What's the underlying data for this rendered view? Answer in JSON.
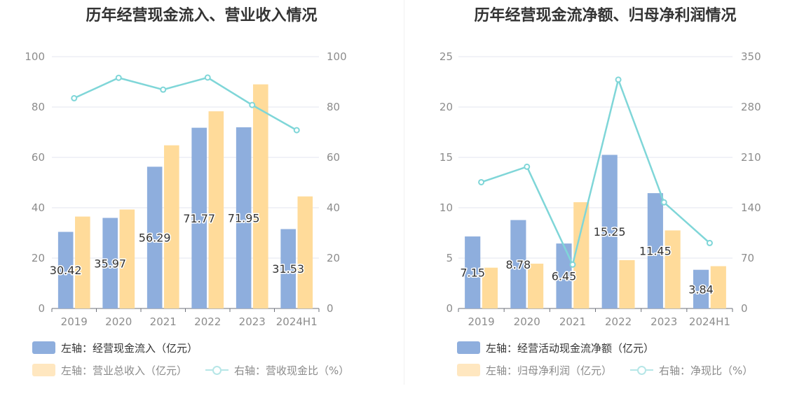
{
  "charts": [
    {
      "title": "历年经营现金流入、营业收入情况",
      "legend": [
        {
          "label": "左轴：经营现金流入（亿元）",
          "color": "#8eaedd",
          "kind": "bar"
        },
        {
          "label": "左轴：营业总收入（亿元）",
          "color": "#ffdb9a",
          "kind": "bar",
          "muted": true
        },
        {
          "label": "右轴：营收现金比（%）",
          "color": "#7fd6d8",
          "kind": "line",
          "muted": true
        }
      ]
    },
    {
      "title": "历年经营现金流净额、归母净利润情况",
      "legend": [
        {
          "label": "左轴：经营活动现金流净额（亿元）",
          "color": "#8eaedd",
          "kind": "bar"
        },
        {
          "label": "左轴：归母净利润（亿元）",
          "color": "#ffdb9a",
          "kind": "bar",
          "muted": true
        },
        {
          "label": "右轴：净现比（%）",
          "color": "#7fd6d8",
          "kind": "line",
          "muted": true
        }
      ]
    }
  ],
  "chart_data": [
    {
      "type": "bar",
      "title": "历年经营现金流入、营业收入情况",
      "categories": [
        "2019",
        "2020",
        "2021",
        "2022",
        "2023",
        "2024H1"
      ],
      "y_left": {
        "min": 0,
        "max": 100,
        "ticks": [
          "0",
          "20",
          "40",
          "60",
          "80",
          "100"
        ]
      },
      "y_right": {
        "min": 0,
        "max": 100,
        "ticks": [
          "0",
          "20",
          "40",
          "60",
          "80",
          "100"
        ]
      },
      "grid": true,
      "legend_position": "bottom-left",
      "series": [
        {
          "name": "左轴：经营现金流入（亿元）",
          "type": "bar",
          "axis": "left",
          "color": "#8eaedd",
          "values": [
            30.42,
            35.97,
            56.29,
            71.77,
            71.95,
            31.53
          ],
          "labels": [
            "30.42",
            "35.97",
            "56.29",
            "71.77",
            "71.95",
            "31.53"
          ]
        },
        {
          "name": "左轴：营业总收入（亿元）",
          "type": "bar",
          "axis": "left",
          "color": "#ffdb9a",
          "values": [
            36.5,
            39.3,
            64.8,
            78.3,
            89.0,
            44.5
          ]
        },
        {
          "name": "右轴：营收现金比（%）",
          "type": "line",
          "axis": "right",
          "color": "#7fd6d8",
          "values": [
            83.5,
            91.6,
            86.9,
            91.7,
            80.8,
            70.8
          ]
        }
      ]
    },
    {
      "type": "bar",
      "title": "历年经营现金流净额、归母净利润情况",
      "categories": [
        "2019",
        "2020",
        "2021",
        "2022",
        "2023",
        "2024H1"
      ],
      "y_left": {
        "min": 0,
        "max": 25,
        "ticks": [
          "0",
          "5",
          "10",
          "15",
          "20",
          "25"
        ]
      },
      "y_right": {
        "min": 0,
        "max": 350,
        "ticks": [
          "0",
          "70",
          "140",
          "210",
          "280",
          "350"
        ]
      },
      "grid": true,
      "legend_position": "bottom-left",
      "series": [
        {
          "name": "左轴：经营活动现金流净额（亿元）",
          "type": "bar",
          "axis": "left",
          "color": "#8eaedd",
          "values": [
            7.15,
            8.78,
            6.45,
            15.25,
            11.45,
            3.84
          ],
          "labels": [
            "7.15",
            "8.78",
            "6.45",
            "15.25",
            "11.45",
            "3.84"
          ]
        },
        {
          "name": "左轴：归母净利润（亿元）",
          "type": "bar",
          "axis": "left",
          "color": "#ffdb9a",
          "values": [
            4.05,
            4.45,
            10.55,
            4.8,
            7.75,
            4.2
          ]
        },
        {
          "name": "右轴：净现比（%）",
          "type": "line",
          "axis": "right",
          "color": "#7fd6d8",
          "values": [
            175.5,
            197.0,
            61.0,
            318.0,
            147.5,
            91.0
          ]
        }
      ]
    }
  ]
}
